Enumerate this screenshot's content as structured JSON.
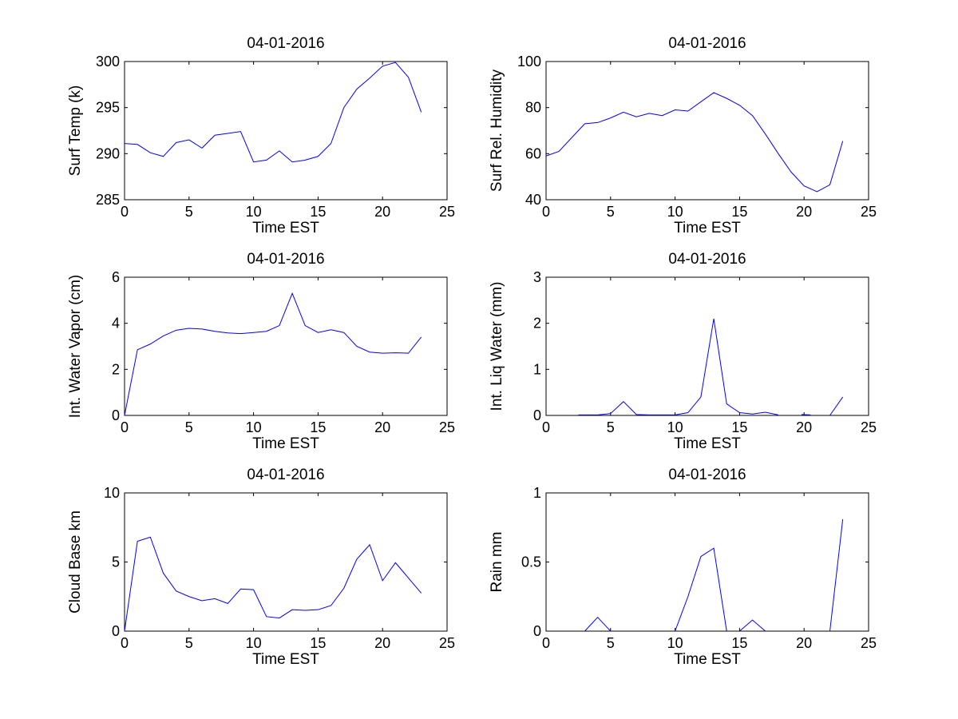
{
  "chart_data": [
    {
      "type": "line",
      "title": "04-01-2016",
      "xlabel": "Time EST",
      "ylabel": "Surf Temp (k)",
      "xlim": [
        0,
        25
      ],
      "ylim": [
        285,
        300
      ],
      "xticks": [
        0,
        5,
        10,
        15,
        20,
        25
      ],
      "yticks": [
        285,
        290,
        295,
        300
      ],
      "grid": false,
      "color": "#0000ff",
      "segments": [
        [
          [
            0,
            291.1
          ],
          [
            1,
            291.0
          ],
          [
            2,
            290.1
          ],
          [
            3,
            289.7
          ],
          [
            4,
            291.2
          ],
          [
            5,
            291.5
          ],
          [
            6,
            290.6
          ],
          [
            7,
            292.0
          ],
          [
            8,
            292.2
          ],
          [
            9,
            292.4
          ],
          [
            10,
            289.1
          ],
          [
            11,
            289.3
          ],
          [
            12,
            290.3
          ],
          [
            13,
            289.1
          ],
          [
            14,
            289.3
          ],
          [
            15,
            289.7
          ],
          [
            16,
            291.1
          ],
          [
            17,
            295.0
          ],
          [
            18,
            297.0
          ],
          [
            19,
            298.2
          ],
          [
            20,
            299.5
          ],
          [
            21,
            299.9
          ],
          [
            22,
            298.3
          ],
          [
            23,
            294.5
          ]
        ]
      ]
    },
    {
      "type": "line",
      "title": "04-01-2016",
      "xlabel": "Time EST",
      "ylabel": "Surf Rel. Humidity",
      "xlim": [
        0,
        25
      ],
      "ylim": [
        40,
        100
      ],
      "xticks": [
        0,
        5,
        10,
        15,
        20,
        25
      ],
      "yticks": [
        40,
        60,
        80,
        100
      ],
      "grid": false,
      "color": "#0000ff",
      "segments": [
        [
          [
            0,
            59
          ],
          [
            1,
            61
          ],
          [
            2,
            67
          ],
          [
            3,
            73
          ],
          [
            4,
            73.5
          ],
          [
            5,
            75.5
          ],
          [
            6,
            78
          ],
          [
            7,
            76
          ],
          [
            8,
            77.5
          ],
          [
            9,
            76.5
          ],
          [
            10,
            79
          ],
          [
            11,
            78.5
          ],
          [
            12,
            82.5
          ],
          [
            13,
            86.5
          ],
          [
            14,
            84
          ],
          [
            15,
            81
          ],
          [
            16,
            76.5
          ],
          [
            17,
            68.5
          ],
          [
            18,
            60
          ],
          [
            19,
            52
          ],
          [
            20,
            46
          ],
          [
            21,
            43.5
          ],
          [
            22,
            46.5
          ],
          [
            23,
            65.5
          ]
        ]
      ]
    },
    {
      "type": "line",
      "title": "04-01-2016",
      "xlabel": "Time EST",
      "ylabel": "Int. Water Vapor (cm)",
      "xlim": [
        0,
        25
      ],
      "ylim": [
        0,
        6
      ],
      "xticks": [
        0,
        5,
        10,
        15,
        20,
        25
      ],
      "yticks": [
        0,
        2,
        4,
        6
      ],
      "grid": false,
      "color": "#0000ff",
      "segments": [
        [
          [
            0,
            0.0
          ],
          [
            1,
            2.85
          ],
          [
            2,
            3.1
          ],
          [
            3,
            3.45
          ],
          [
            4,
            3.7
          ],
          [
            5,
            3.78
          ],
          [
            6,
            3.75
          ],
          [
            7,
            3.65
          ],
          [
            8,
            3.58
          ],
          [
            9,
            3.55
          ],
          [
            10,
            3.6
          ],
          [
            11,
            3.65
          ],
          [
            12,
            3.9
          ],
          [
            13,
            5.3
          ],
          [
            14,
            3.9
          ],
          [
            15,
            3.6
          ],
          [
            16,
            3.72
          ],
          [
            17,
            3.6
          ],
          [
            18,
            3.0
          ],
          [
            19,
            2.75
          ],
          [
            20,
            2.7
          ],
          [
            21,
            2.72
          ],
          [
            22,
            2.7
          ],
          [
            23,
            3.4
          ]
        ]
      ]
    },
    {
      "type": "line",
      "title": "04-01-2016",
      "xlabel": "Time EST",
      "ylabel": "Int. Liq Water (mm)",
      "xlim": [
        0,
        25
      ],
      "ylim": [
        0,
        3
      ],
      "xticks": [
        0,
        5,
        10,
        15,
        20,
        25
      ],
      "yticks": [
        0,
        1,
        2,
        3
      ],
      "grid": false,
      "color": "#0000ff",
      "segments": [
        [
          [
            2.5,
            0.01
          ],
          [
            3,
            0.01
          ],
          [
            4,
            0.01
          ],
          [
            5,
            0.04
          ],
          [
            6,
            0.3
          ],
          [
            7,
            0.02
          ],
          [
            8,
            0.01
          ],
          [
            9,
            0.01
          ],
          [
            10,
            0.01
          ],
          [
            11,
            0.06
          ],
          [
            12,
            0.4
          ],
          [
            13,
            2.1
          ],
          [
            14,
            0.25
          ],
          [
            15,
            0.06
          ],
          [
            16,
            0.03
          ],
          [
            17,
            0.07
          ],
          [
            18,
            0.01
          ]
        ],
        [
          [
            19.8,
            0.02
          ],
          [
            20.5,
            0.01
          ]
        ],
        [
          [
            22,
            0.0
          ],
          [
            23,
            0.4
          ]
        ]
      ]
    },
    {
      "type": "line",
      "title": "04-01-2016",
      "xlabel": "Time EST",
      "ylabel": "Cloud Base km",
      "xlim": [
        0,
        25
      ],
      "ylim": [
        0,
        10
      ],
      "xticks": [
        0,
        5,
        10,
        15,
        20,
        25
      ],
      "yticks": [
        0,
        5,
        10
      ],
      "grid": false,
      "color": "#0000ff",
      "segments": [
        [
          [
            0,
            0.0
          ],
          [
            1,
            6.5
          ],
          [
            2,
            6.8
          ],
          [
            3,
            4.2
          ],
          [
            4,
            2.9
          ],
          [
            5,
            2.5
          ],
          [
            6,
            2.2
          ],
          [
            7,
            2.35
          ],
          [
            8,
            2.0
          ],
          [
            9,
            3.05
          ],
          [
            10,
            3.0
          ],
          [
            11,
            1.05
          ],
          [
            12,
            0.95
          ],
          [
            13,
            1.55
          ],
          [
            14,
            1.5
          ],
          [
            15,
            1.55
          ],
          [
            16,
            1.85
          ],
          [
            17,
            3.1
          ],
          [
            18,
            5.2
          ],
          [
            19,
            6.25
          ],
          [
            20,
            3.65
          ],
          [
            21,
            4.95
          ],
          [
            22,
            3.85
          ],
          [
            23,
            2.75
          ]
        ]
      ]
    },
    {
      "type": "line",
      "title": "04-01-2016",
      "xlabel": "Time EST",
      "ylabel": "Rain mm",
      "xlim": [
        0,
        25
      ],
      "ylim": [
        0,
        1
      ],
      "xticks": [
        0,
        5,
        10,
        15,
        20,
        25
      ],
      "yticks": [
        0,
        0.5,
        1
      ],
      "yticklabels": [
        "0",
        "0.5",
        "1"
      ],
      "grid": false,
      "color": "#0000ff",
      "segments": [
        [
          [
            3,
            0.0
          ],
          [
            4,
            0.1
          ],
          [
            5,
            0.0
          ]
        ],
        [
          [
            10,
            0.0
          ],
          [
            11,
            0.25
          ],
          [
            12,
            0.54
          ],
          [
            13,
            0.6
          ],
          [
            14,
            0.0
          ]
        ],
        [
          [
            15,
            0.0
          ],
          [
            16,
            0.08
          ],
          [
            17,
            0.0
          ]
        ],
        [
          [
            22,
            0.0
          ],
          [
            23,
            0.81
          ]
        ]
      ]
    }
  ]
}
